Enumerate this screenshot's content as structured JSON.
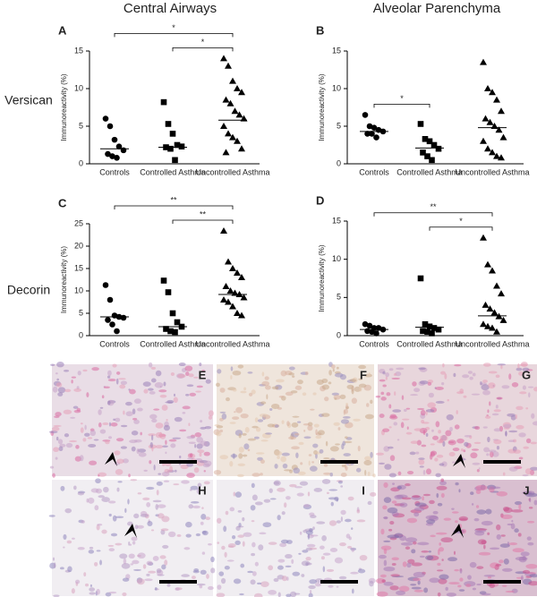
{
  "column_titles": [
    "Central Airways",
    "Alveolar Parenchyma"
  ],
  "row_labels": [
    "Versican",
    "Decorin"
  ],
  "chart_data": [
    {
      "type": "strip",
      "label": "A",
      "y_label": "Immunoreactivity (%)",
      "categories": [
        "Controls",
        "Controlled Asthma",
        "Uncontrolled Asthma"
      ],
      "ylim": [
        0,
        15
      ],
      "yticks": [
        0,
        5,
        10,
        15
      ],
      "color": "#000000",
      "groups": [
        {
          "marker": "circle",
          "median": 2.0,
          "values": [
            6.0,
            5.0,
            3.2,
            2.3,
            1.8,
            1.3,
            1.0,
            0.8
          ]
        },
        {
          "marker": "square",
          "median": 2.2,
          "values": [
            8.2,
            5.3,
            4.0,
            2.5,
            2.3,
            2.2,
            2.0,
            0.5
          ]
        },
        {
          "marker": "triangle",
          "median": 5.8,
          "values": [
            14.0,
            13.0,
            11.0,
            10.0,
            9.5,
            8.5,
            8.0,
            7.0,
            6.5,
            6.0,
            5.0,
            4.0,
            3.5,
            3.0,
            2.0,
            1.5
          ]
        }
      ],
      "significance": [
        {
          "from": 0,
          "to": 2,
          "label": "*"
        },
        {
          "from": 1,
          "to": 2,
          "label": "*"
        }
      ]
    },
    {
      "type": "strip",
      "label": "B",
      "y_label": "Immunoreactivity (%)",
      "categories": [
        "Controls",
        "Controlled Asthma",
        "Uncontrolled Asthma"
      ],
      "ylim": [
        0,
        15
      ],
      "yticks": [
        0,
        5,
        10,
        15
      ],
      "color": "#000000",
      "groups": [
        {
          "marker": "circle",
          "median": 4.3,
          "values": [
            6.5,
            5.0,
            4.8,
            4.5,
            4.3,
            4.0,
            4.0,
            3.5
          ]
        },
        {
          "marker": "square",
          "median": 2.1,
          "values": [
            5.3,
            3.3,
            3.0,
            2.5,
            2.0,
            1.5,
            1.0,
            0.5
          ]
        },
        {
          "marker": "triangle",
          "median": 4.8,
          "values": [
            13.5,
            10.0,
            9.5,
            8.5,
            7.0,
            6.0,
            5.5,
            5.0,
            4.5,
            3.5,
            3.0,
            2.0,
            1.5,
            1.0,
            0.8
          ]
        }
      ],
      "significance": [
        {
          "from": 0,
          "to": 1,
          "label": "*"
        }
      ]
    },
    {
      "type": "strip",
      "label": "C",
      "y_label": "Immunoreactivity (%)",
      "categories": [
        "Controls",
        "Controlled Asthma",
        "Uncontrolled Asthma"
      ],
      "ylim": [
        0,
        25
      ],
      "yticks": [
        0,
        5,
        10,
        15,
        20,
        25
      ],
      "color": "#000000",
      "groups": [
        {
          "marker": "circle",
          "median": 4.2,
          "values": [
            11.3,
            8.0,
            4.5,
            4.2,
            4.0,
            3.5,
            2.5,
            1.0
          ]
        },
        {
          "marker": "square",
          "median": 2.0,
          "values": [
            12.3,
            9.7,
            5.0,
            3.0,
            2.0,
            1.5,
            1.0,
            0.8
          ]
        },
        {
          "marker": "triangle",
          "median": 9.2,
          "values": [
            23.4,
            16.5,
            15.0,
            14.0,
            13.0,
            11.0,
            10.0,
            9.5,
            9.2,
            8.5,
            8.0,
            7.5,
            6.5,
            5.0,
            4.5
          ]
        }
      ],
      "significance": [
        {
          "from": 0,
          "to": 2,
          "label": "**"
        },
        {
          "from": 1,
          "to": 2,
          "label": "**"
        }
      ]
    },
    {
      "type": "strip",
      "label": "D",
      "y_label": "Immunoreactivity (%)",
      "categories": [
        "Controls",
        "Controlled Asthma",
        "Uncontrolled Asthma"
      ],
      "ylim": [
        0,
        15
      ],
      "yticks": [
        0,
        5,
        10,
        15
      ],
      "color": "#000000",
      "groups": [
        {
          "marker": "circle",
          "median": 0.8,
          "values": [
            1.5,
            1.3,
            1.0,
            1.0,
            0.8,
            0.6,
            0.5,
            0.3
          ]
        },
        {
          "marker": "square",
          "median": 1.1,
          "values": [
            7.5,
            1.5,
            1.2,
            1.0,
            0.8,
            0.6,
            0.5,
            0.3
          ]
        },
        {
          "marker": "triangle",
          "median": 2.6,
          "values": [
            12.8,
            9.3,
            8.5,
            6.5,
            5.5,
            4.0,
            3.5,
            3.0,
            2.5,
            2.0,
            1.5,
            1.2,
            1.0,
            0.5
          ]
        }
      ],
      "significance": [
        {
          "from": 0,
          "to": 2,
          "label": "**"
        },
        {
          "from": 1,
          "to": 2,
          "label": "*"
        }
      ]
    }
  ],
  "micrographs": [
    {
      "label": "E"
    },
    {
      "label": "F"
    },
    {
      "label": "G"
    },
    {
      "label": "H"
    },
    {
      "label": "I"
    },
    {
      "label": "J"
    }
  ]
}
